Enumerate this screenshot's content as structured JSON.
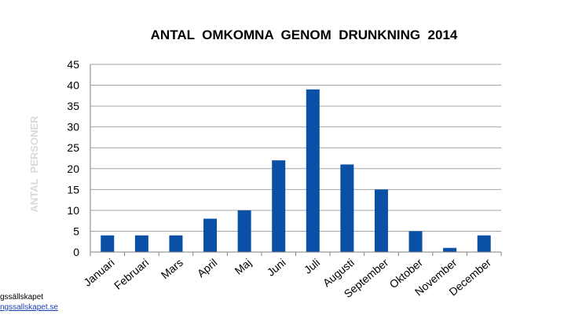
{
  "chart_data": {
    "type": "bar",
    "title": "ANTAL  OMKOMNA  GENOM  DRUNKNING  2014",
    "ylabel": "ANTAL  PERSONER",
    "xlabel": "",
    "categories": [
      "Januari",
      "Februari",
      "Mars",
      "April",
      "Maj",
      "Juni",
      "Juli",
      "Augusti",
      "September",
      "Oktober",
      "November",
      "December"
    ],
    "values": [
      4,
      4,
      4,
      8,
      10,
      22,
      39,
      21,
      15,
      5,
      1,
      4
    ],
    "ylim": [
      0,
      45
    ],
    "yticks": [
      0,
      5,
      10,
      15,
      20,
      25,
      30,
      35,
      40,
      45
    ],
    "grid": true,
    "legend": "none",
    "bar_color": "#0a50a6",
    "grid_color": "#a6a6a6",
    "ylabel_color": "#d9d9d9"
  },
  "footer": {
    "org": "gssällskapet",
    "link": "ngssallskapet.se"
  }
}
